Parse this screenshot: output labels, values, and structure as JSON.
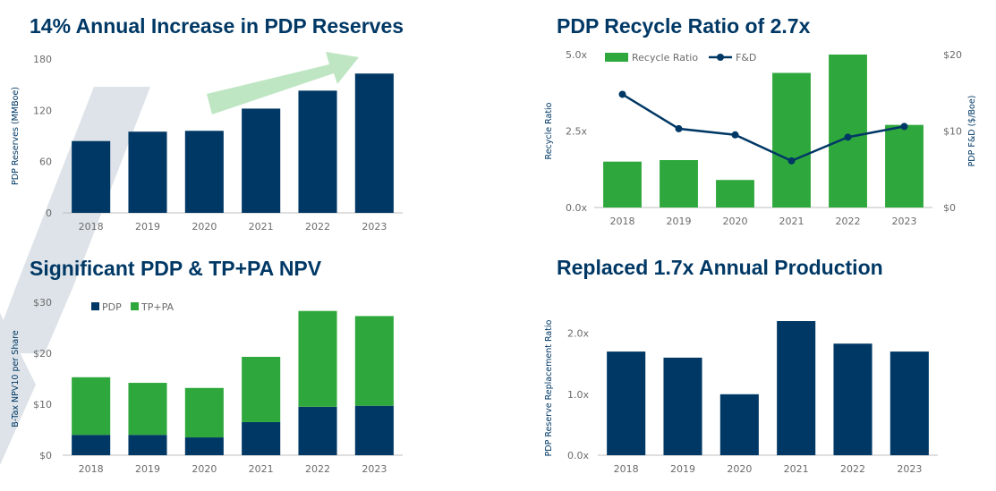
{
  "colors": {
    "navy": "#003865",
    "green": "#2ea83c",
    "arrow": "#bfe6c3",
    "chevron": "#dde3e8",
    "tick": "#6b6b6b",
    "axis_line": "#bfbfbf"
  },
  "chart_data": [
    {
      "id": "reserves",
      "type": "bar",
      "title": "14% Annual Increase in PDP Reserves",
      "ylabel": "PDP Reserves (MMBoe)",
      "categories": [
        "2018",
        "2019",
        "2020",
        "2021",
        "2022",
        "2023"
      ],
      "series": [
        {
          "values": [
            84,
            95,
            96,
            122,
            143,
            163
          ]
        }
      ],
      "ylim": [
        0,
        180
      ],
      "yticks": [
        "0",
        "60",
        "120",
        "180"
      ],
      "annotation": "upward-arrow"
    },
    {
      "id": "recycle",
      "type": "bar",
      "title": "PDP Recycle Ratio of 2.7x",
      "ylabel": "Recycle Ratio",
      "ylabel_right": "PDP F&D ($/Boe)",
      "categories": [
        "2018",
        "2019",
        "2020",
        "2021",
        "2022",
        "2023"
      ],
      "series": [
        {
          "name": "Recycle Ratio",
          "type": "bar",
          "axis": "left",
          "values": [
            1.5,
            1.55,
            0.9,
            4.4,
            5.0,
            2.7
          ]
        },
        {
          "name": "F&D",
          "type": "line",
          "axis": "right",
          "values": [
            14.8,
            10.3,
            9.5,
            6.1,
            9.2,
            10.6
          ]
        }
      ],
      "ylim": [
        0,
        5
      ],
      "ylim_right": [
        0,
        20
      ],
      "yticks": [
        "0.0x",
        "2.5x",
        "5.0x"
      ],
      "yticks_right": [
        "$0",
        "$10",
        "$20"
      ],
      "legend": "top-left"
    },
    {
      "id": "npv",
      "type": "bar",
      "stacked": true,
      "title": "Significant PDP & TP+PA NPV",
      "ylabel": "B-Tax NPV10 per Share",
      "categories": [
        "2018",
        "2019",
        "2020",
        "2021",
        "2022",
        "2023"
      ],
      "series": [
        {
          "name": "PDP",
          "values": [
            4.0,
            4.0,
            3.5,
            6.5,
            9.5,
            9.7
          ]
        },
        {
          "name": "TP+PA",
          "values": [
            11.3,
            10.2,
            9.7,
            12.8,
            18.8,
            17.6
          ]
        }
      ],
      "ylim": [
        0,
        30
      ],
      "yticks": [
        "$0",
        "$10",
        "$20",
        "$30"
      ],
      "legend": "top-left"
    },
    {
      "id": "replacement",
      "type": "bar",
      "title": "Replaced 1.7x Annual Production",
      "ylabel": "PDP Reserve Replacement Ratio",
      "categories": [
        "2018",
        "2019",
        "2020",
        "2021",
        "2022",
        "2023"
      ],
      "series": [
        {
          "values": [
            1.7,
            1.6,
            1.0,
            2.2,
            1.83,
            1.7
          ]
        }
      ],
      "ylim": [
        0,
        2.2
      ],
      "yticks": [
        "0.0x",
        "1.0x",
        "2.0x"
      ]
    }
  ]
}
